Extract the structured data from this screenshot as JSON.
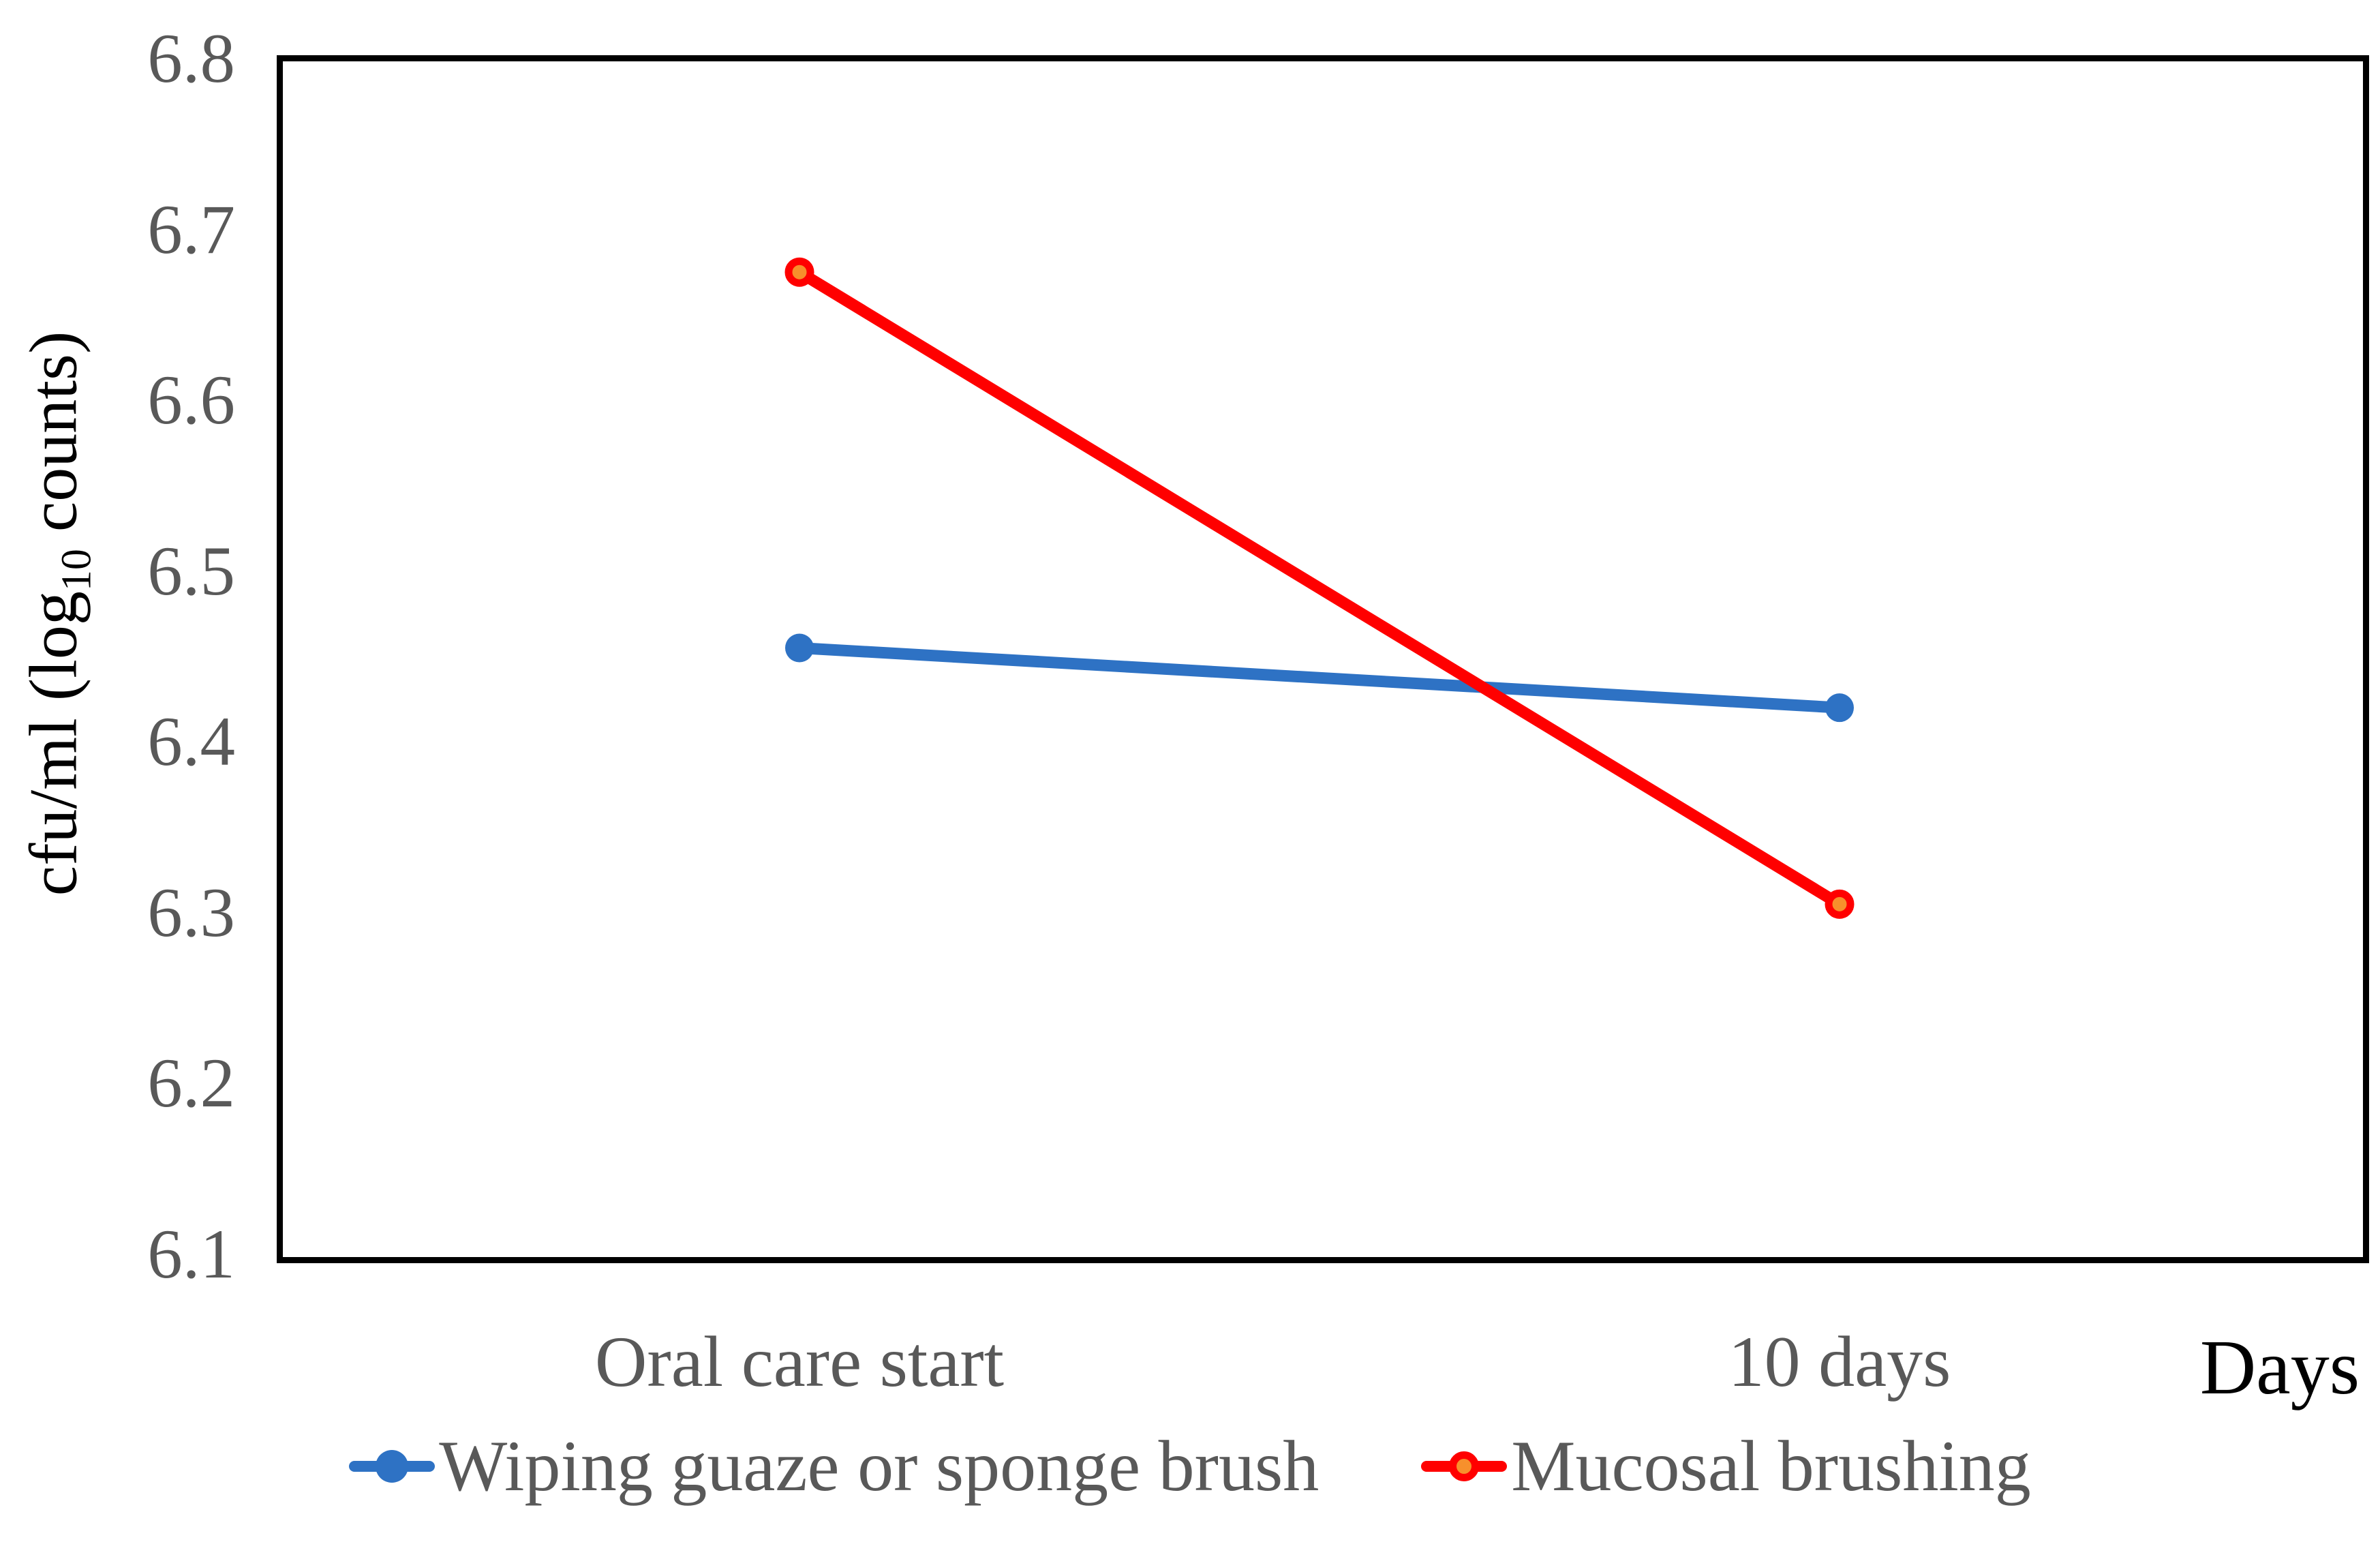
{
  "figure": {
    "y_title_pre": "cfu/ml (log",
    "y_title_sub": "10",
    "y_title_post": " counts)",
    "x_axis_title": "Days"
  },
  "chart_data": {
    "type": "line",
    "title": "",
    "categories": [
      "Oral care start",
      "10 days"
    ],
    "series": [
      {
        "name": "Wiping guaze or sponge brush",
        "values": [
          6.455,
          6.42
        ],
        "line_color": "#2E72C4",
        "marker_fill": "#2E72C4",
        "marker_stroke": "#2E72C4",
        "marker_style": "solid-circle"
      },
      {
        "name": "Mucosal brushing",
        "values": [
          6.675,
          6.305
        ],
        "line_color": "#FF0000",
        "marker_fill": "#F7902C",
        "marker_stroke": "#FF0000",
        "marker_style": "ring-circle"
      }
    ],
    "xlabel": "Days",
    "ylabel": "cfu/ml (log10 counts)",
    "ylim": [
      6.1,
      6.8
    ],
    "yticks": [
      "6.8",
      "6.7",
      "6.6",
      "6.5",
      "6.4",
      "6.3",
      "6.2",
      "6.1"
    ],
    "grid": false,
    "legend_position": "bottom",
    "plot_border_color": "#000000",
    "tick_label_color": "#595959"
  }
}
